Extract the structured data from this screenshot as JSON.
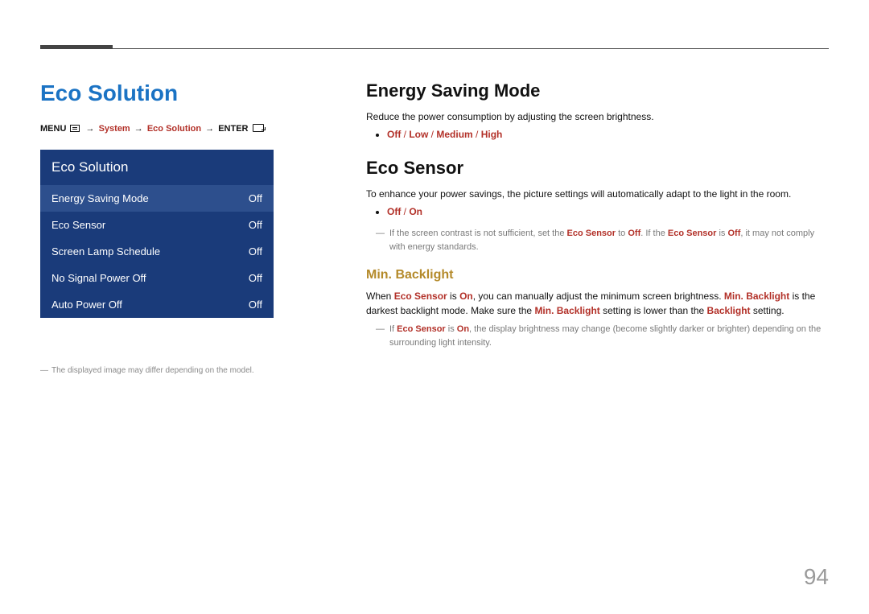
{
  "colors": {
    "title_blue": "#1b73c4",
    "menu_bg": "#1a3b7a",
    "menu_selected_bg": "#2d4f8d",
    "accent_red": "#b23028",
    "subheading_gold": "#b48a2a",
    "footnote_gray": "#8a8a8a",
    "note_gray": "#7a7a7a",
    "rule_gray": "#444444",
    "page_num_gray": "#9a9a9a",
    "text": "#111111",
    "background": "#ffffff"
  },
  "typography": {
    "main_title_pt": 28,
    "section_title_pt": 22,
    "sub_title_pt": 16,
    "body_pt": 12,
    "breadcrumb_pt": 11,
    "note_pt": 11,
    "menu_title_pt": 17,
    "menu_item_pt": 13,
    "page_num_pt": 28
  },
  "left": {
    "title": "Eco Solution",
    "breadcrumb": {
      "menu_label": "MENU",
      "system": "System",
      "eco_solution": "Eco Solution",
      "enter_label": "ENTER",
      "arrow": "→"
    },
    "menu": {
      "header": "Eco Solution",
      "items": [
        {
          "label": "Energy Saving Mode",
          "value": "Off",
          "selected": true
        },
        {
          "label": "Eco Sensor",
          "value": "Off",
          "selected": false
        },
        {
          "label": "Screen Lamp Schedule",
          "value": "Off",
          "selected": false
        },
        {
          "label": "No Signal Power Off",
          "value": "Off",
          "selected": false
        },
        {
          "label": "Auto Power Off",
          "value": "Off",
          "selected": false
        }
      ]
    },
    "footnote": "The displayed image may differ depending on the model."
  },
  "right": {
    "esm": {
      "title": "Energy Saving Mode",
      "desc": "Reduce the power consumption by adjusting the screen brightness.",
      "options": {
        "off": "Off",
        "low": "Low",
        "medium": "Medium",
        "high": "High",
        "sep": " / "
      }
    },
    "ecs": {
      "title": "Eco Sensor",
      "desc": "To enhance your power savings, the picture settings will automatically adapt to the light in the room.",
      "options": {
        "off": "Off",
        "on": "On",
        "sep": " / "
      },
      "note_pre": "If the screen contrast is not sufficient, set the ",
      "note_es": "Eco Sensor",
      "note_mid1": " to ",
      "note_off": "Off",
      "note_mid2": ". If the ",
      "note_mid3": " is ",
      "note_post": ", it may not comply with energy standards."
    },
    "minb": {
      "title": "Min. Backlight",
      "p_pre": "When ",
      "p_es": "Eco Sensor",
      "p_is": " is ",
      "p_on": "On",
      "p_mid1": ", you can manually adjust the minimum screen brightness. ",
      "p_mb": "Min. Backlight",
      "p_mid2": " is the darkest backlight mode. Make sure the ",
      "p_mid3": " setting is lower than the ",
      "p_bl": "Backlight",
      "p_end": " setting.",
      "note_pre": "If ",
      "note_post": ", the display brightness may change (become slightly darker or brighter) depending on the surrounding light intensity."
    }
  },
  "page_number": "94"
}
